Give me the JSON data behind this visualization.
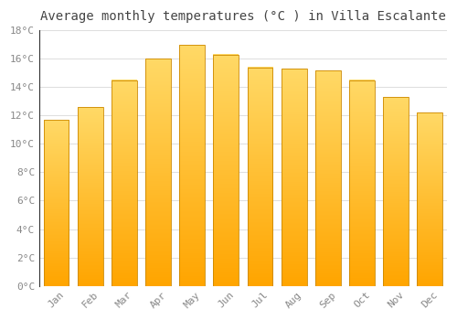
{
  "title": "Average monthly temperatures (°C ) in Villa Escalante",
  "months": [
    "Jan",
    "Feb",
    "Mar",
    "Apr",
    "May",
    "Jun",
    "Jul",
    "Aug",
    "Sep",
    "Oct",
    "Nov",
    "Dec"
  ],
  "values": [
    11.7,
    12.6,
    14.5,
    16.0,
    17.0,
    16.3,
    15.4,
    15.3,
    15.2,
    14.5,
    13.3,
    12.2
  ],
  "bar_color_bottom": "#FFA500",
  "bar_color_top": "#FFD966",
  "bar_edge_color": "#CC8800",
  "ylim": [
    0,
    18
  ],
  "yticks": [
    0,
    2,
    4,
    6,
    8,
    10,
    12,
    14,
    16,
    18
  ],
  "grid_color": "#dddddd",
  "background_color": "#ffffff",
  "title_fontsize": 10,
  "tick_fontsize": 8,
  "tick_label_color": "#888888",
  "title_color": "#444444",
  "bar_width": 0.75,
  "left_spine_color": "#333333"
}
